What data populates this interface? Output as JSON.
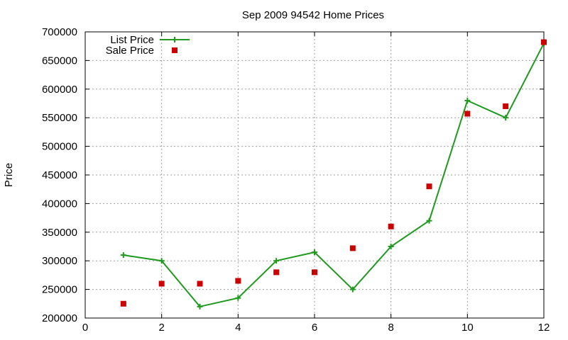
{
  "chart_data": {
    "type": "line",
    "title": "Sep 2009 94542 Home Prices",
    "xlabel": "",
    "ylabel": "Price",
    "xlim": [
      0,
      12
    ],
    "ylim": [
      200000,
      700000
    ],
    "xticks": [
      "0",
      "2",
      "4",
      "6",
      "8",
      "10",
      "12"
    ],
    "yticks": [
      "200000",
      "250000",
      "300000",
      "350000",
      "400000",
      "450000",
      "500000",
      "550000",
      "600000",
      "650000",
      "700000"
    ],
    "grid": true,
    "legend_position": "top-left",
    "series": [
      {
        "name": "List Price",
        "style": "line-with-plus-markers",
        "color": "#1f9a1f",
        "x": [
          1,
          2,
          3,
          4,
          5,
          6,
          7,
          8,
          9,
          10,
          11,
          12
        ],
        "y": [
          310000,
          300000,
          220000,
          235000,
          300000,
          315000,
          250000,
          325000,
          370000,
          580000,
          550000,
          680000
        ]
      },
      {
        "name": "Sale Price",
        "style": "square-markers",
        "color": "#cc0000",
        "x": [
          1,
          2,
          3,
          4,
          5,
          6,
          7,
          8,
          9,
          10,
          11,
          12
        ],
        "y": [
          225000,
          260000,
          260000,
          265000,
          280000,
          280000,
          322000,
          360000,
          430000,
          557000,
          570000,
          682000
        ]
      }
    ]
  }
}
